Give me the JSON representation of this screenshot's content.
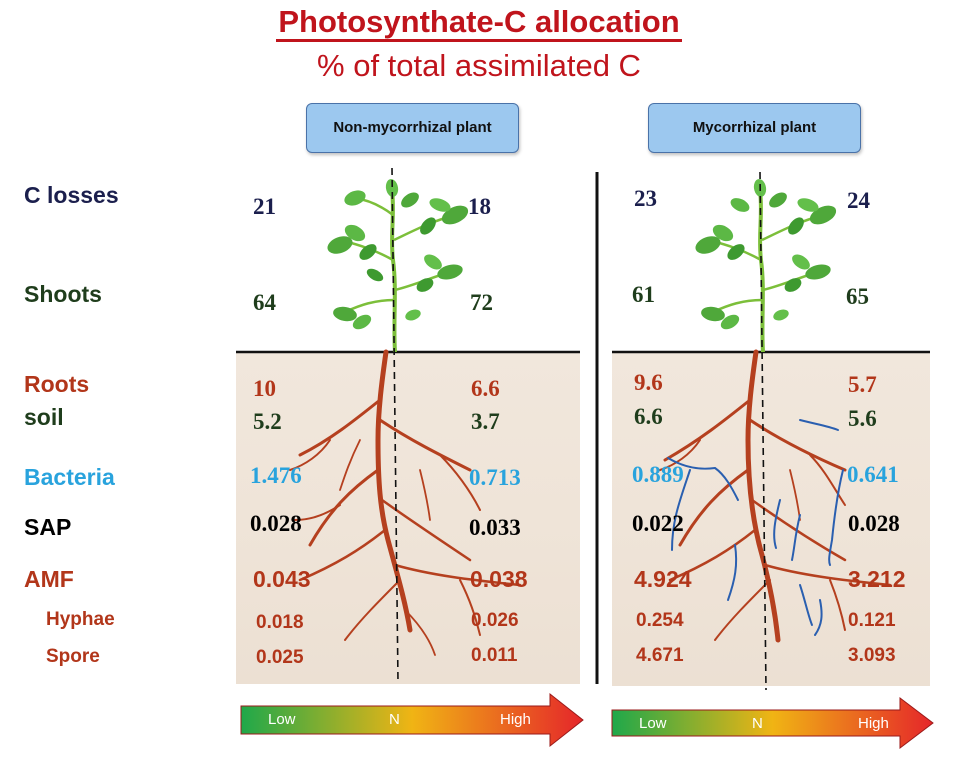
{
  "title": "Photosynthate-C allocation",
  "subtitle": "% of total assimilated C",
  "panels": {
    "left": {
      "label": "Non-mycorrhizal plant"
    },
    "right": {
      "label": "Mycorrhizal plant"
    }
  },
  "row_labels": {
    "c_losses": "C losses",
    "shoots": "Shoots",
    "roots": "Roots",
    "soil": "soil",
    "bacteria": "Bacteria",
    "sap": "SAP",
    "amf": "AMF",
    "hyphae": "Hyphae",
    "spore": "Spore"
  },
  "values": {
    "nm_left": {
      "c_losses": "21",
      "shoots": "64",
      "roots": "10",
      "soil": "5.2",
      "bacteria": "1.476",
      "sap": "0.028",
      "amf": "0.043",
      "hyphae": "0.018",
      "spore": "0.025"
    },
    "nm_right": {
      "c_losses": "18",
      "shoots": "72",
      "roots": "6.6",
      "soil": "3.7",
      "bacteria": "0.713",
      "sap": "0.033",
      "amf": "0.038",
      "hyphae": "0.026",
      "spore": "0.011"
    },
    "m_left": {
      "c_losses": "23",
      "shoots": "61",
      "roots": "9.6",
      "soil": "6.6",
      "bacteria": "0.889",
      "sap": "0.022",
      "amf": "4.924",
      "hyphae": "0.254",
      "spore": "4.671"
    },
    "m_right": {
      "c_losses": "24",
      "shoots": "65",
      "roots": "5.7",
      "soil": "5.6",
      "bacteria": "0.641",
      "sap": "0.028",
      "amf": "3.212",
      "hyphae": "0.121",
      "spore": "3.093"
    }
  },
  "scale": {
    "low": "Low",
    "mid": "N",
    "high": "High"
  },
  "colors": {
    "title": "#c0141c",
    "c_losses": "#1b1f4d",
    "shoots": "#1f3d1c",
    "roots": "#b2361a",
    "soil": "#1f3d1c",
    "bacteria": "#29a3dd",
    "sap": "#000000",
    "amf": "#b2361a",
    "root_line": "#b5401f",
    "hyphae_line": "#2a5fb0"
  }
}
